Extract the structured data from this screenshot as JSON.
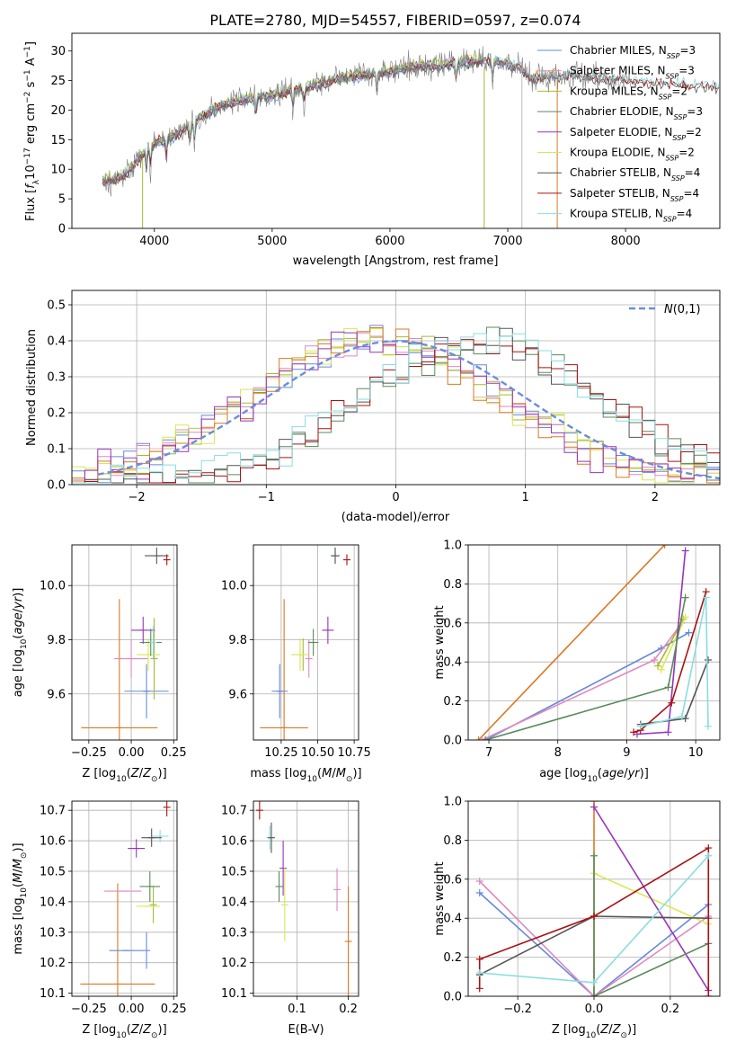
{
  "title": "PLATE=2780, MJD=54557, FIBERID=0597, z=0.074",
  "colors": {
    "chabrier_miles": "#6688dd",
    "salpeter_miles": "#e088c0",
    "kroupa_miles": "#aab830",
    "chabrier_elodie": "#5a8a5a",
    "salpeter_elodie": "#9933bb",
    "kroupa_elodie": "#d8e850",
    "chabrier_stelib": "#555555",
    "salpeter_stelib": "#aa1111",
    "kroupa_stelib": "#88dde0",
    "orange": "#dd7722",
    "data": "#808080",
    "normal": "#6a8ed8"
  },
  "chart_data": [
    {
      "id": "spectrum",
      "type": "line",
      "xlabel": "wavelength [Angstrom, rest frame]",
      "ylabel": "Flux [f_λ 10^-17 erg cm^-2 s^-1 A^-1]",
      "xlim": [
        3300,
        8800
      ],
      "ylim": [
        0,
        33
      ],
      "xticks": [
        "4000",
        "5000",
        "6000",
        "7000",
        "8000"
      ],
      "yticks": [
        "0",
        "5",
        "10",
        "15",
        "20",
        "25",
        "30"
      ],
      "legend_position": "top-right",
      "legend": [
        {
          "name": "Chabrier MILES, N",
          "ssp": "=3"
        },
        {
          "name": "Salpeter MILES, N",
          "ssp": "=3"
        },
        {
          "name": "Kroupa MILES, N",
          "ssp": "=2"
        },
        {
          "name": "Chabrier ELODIE, N",
          "ssp": "=3"
        },
        {
          "name": "Salpeter ELODIE, N",
          "ssp": "=2"
        },
        {
          "name": "Kroupa ELODIE, N",
          "ssp": "=2"
        },
        {
          "name": "Chabrier STELIB, N",
          "ssp": "=4"
        },
        {
          "name": "Salpeter STELIB, N",
          "ssp": "=4"
        },
        {
          "name": "Kroupa STELIB, N",
          "ssp": "=4"
        }
      ],
      "data_range": [
        3560,
        8050
      ],
      "miles_range": [
        3560,
        7420
      ],
      "stelib_range": [
        3560,
        8800
      ],
      "continuum": [
        [
          3560,
          8
        ],
        [
          3700,
          8.5
        ],
        [
          3800,
          10
        ],
        [
          3900,
          12.5
        ],
        [
          4000,
          14.5
        ],
        [
          4200,
          16
        ],
        [
          4400,
          19
        ],
        [
          4600,
          21
        ],
        [
          4800,
          22
        ],
        [
          5000,
          22.5
        ],
        [
          5200,
          23.5
        ],
        [
          5400,
          24.5
        ],
        [
          5600,
          25.5
        ],
        [
          5800,
          26
        ],
        [
          6000,
          26.5
        ],
        [
          6200,
          27.5
        ],
        [
          6400,
          27.5
        ],
        [
          6600,
          28.2
        ],
        [
          6800,
          28.4
        ],
        [
          7000,
          28
        ],
        [
          7100,
          27
        ],
        [
          7200,
          25.5
        ],
        [
          7500,
          25.8
        ],
        [
          7800,
          25.3
        ],
        [
          8000,
          25
        ],
        [
          8300,
          24.5
        ],
        [
          8800,
          24
        ]
      ]
    },
    {
      "id": "residuals",
      "type": "histogram",
      "xlabel": "(data-model)/error",
      "ylabel": "Normed distribution",
      "xlim": [
        -2.5,
        2.5
      ],
      "ylim": [
        0,
        0.54
      ],
      "xticks": [
        "−2",
        "−1",
        "0",
        "1",
        "2"
      ],
      "yticks": [
        "0.0",
        "0.1",
        "0.2",
        "0.3",
        "0.4",
        "0.5"
      ],
      "legend_label": "N(0,1)",
      "legend_position": "top-right",
      "bin_width": 0.1,
      "groups": [
        {
          "center": -0.15,
          "sigma": 0.98,
          "series": [
            "chabrier_miles",
            "salpeter_miles",
            "kroupa_miles",
            "kroupa_elodie",
            "orange",
            "salpeter_elodie"
          ]
        },
        {
          "center": 0.65,
          "sigma": 0.92,
          "series": [
            "chabrier_elodie",
            "chabrier_stelib",
            "salpeter_stelib",
            "kroupa_stelib"
          ]
        }
      ]
    },
    {
      "id": "age-vs-z",
      "type": "errorbar",
      "xlabel": "Z [log10(Z/Z⊙)]",
      "ylabel": "age  [log10(age/yr)]",
      "xlim": [
        -0.35,
        0.27
      ],
      "ylim": [
        9.43,
        10.15
      ],
      "xticks": [
        "−0.25",
        "0.00",
        "0.25"
      ],
      "yticks": [
        "9.6",
        "9.8",
        "10.0"
      ],
      "points": [
        {
          "s": "orange",
          "x": -0.07,
          "y": 9.475,
          "xe": 0.225,
          "ye": 0.475
        },
        {
          "s": "chabrier_miles",
          "x": 0.09,
          "y": 9.61,
          "xe": 0.13,
          "ye": 0.1
        },
        {
          "s": "salpeter_miles",
          "x": 0.0,
          "y": 9.73,
          "xe": 0.1,
          "ye": 0.07
        },
        {
          "s": "kroupa_miles",
          "x": 0.135,
          "y": 9.73,
          "xe": 0.0,
          "ye": 0.15
        },
        {
          "s": "kroupa_elodie",
          "x": 0.1,
          "y": 9.745,
          "xe": 0.07,
          "ye": 0.06
        },
        {
          "s": "salpeter_elodie",
          "x": 0.07,
          "y": 9.835,
          "xe": 0.07,
          "ye": 0.05
        },
        {
          "s": "chabrier_elodie",
          "x": 0.115,
          "y": 9.79,
          "xe": 0.065,
          "ye": 0.05
        },
        {
          "s": "kroupa_stelib",
          "x": 0.13,
          "y": 9.79,
          "xe": 0.0,
          "ye": 0.06
        },
        {
          "s": "chabrier_stelib",
          "x": 0.15,
          "y": 10.11,
          "xe": 0.07,
          "ye": 0.03
        },
        {
          "s": "salpeter_stelib",
          "x": 0.21,
          "y": 10.095,
          "xe": 0.0,
          "ye": 0.02
        }
      ]
    },
    {
      "id": "age-vs-mass",
      "type": "errorbar",
      "xlabel": "mass [log10(M/M⊙)]",
      "ylabel": "",
      "xlim": [
        10.06,
        10.78
      ],
      "ylim": [
        9.43,
        10.15
      ],
      "xticks": [
        "10.25",
        "10.50",
        "10.75"
      ],
      "yticks": [
        "9.6",
        "9.8",
        "10.0"
      ],
      "points": [
        {
          "s": "orange",
          "x": 10.27,
          "y": 9.475,
          "xe": 0.165,
          "ye": 0.475
        },
        {
          "s": "chabrier_miles",
          "x": 10.24,
          "y": 9.61,
          "xe": 0.055,
          "ye": 0.1
        },
        {
          "s": "salpeter_miles",
          "x": 10.44,
          "y": 9.73,
          "xe": 0.0,
          "ye": 0.07
        },
        {
          "s": "kroupa_miles",
          "x": 10.4,
          "y": 9.745,
          "xe": 0.0,
          "ye": 0.06
        },
        {
          "s": "kroupa_elodie",
          "x": 10.38,
          "y": 9.745,
          "xe": 0.06,
          "ye": 0.06
        },
        {
          "s": "salpeter_elodie",
          "x": 10.57,
          "y": 9.835,
          "xe": 0.04,
          "ye": 0.05
        },
        {
          "s": "chabrier_elodie",
          "x": 10.47,
          "y": 9.79,
          "xe": 0.035,
          "ye": 0.05
        },
        {
          "s": "kroupa_stelib",
          "x": 10.62,
          "y": 10.11,
          "xe": 0.02,
          "ye": 0.03
        },
        {
          "s": "chabrier_stelib",
          "x": 10.62,
          "y": 10.11,
          "xe": 0.03,
          "ye": 0.03
        },
        {
          "s": "salpeter_stelib",
          "x": 10.7,
          "y": 10.095,
          "xe": 0.0,
          "ye": 0.02
        }
      ]
    },
    {
      "id": "weight-vs-age",
      "type": "line",
      "xlabel": "age  [log10(age/yr)]",
      "ylabel": "mass weight",
      "xlim": [
        6.7,
        10.35
      ],
      "ylim": [
        0,
        1
      ],
      "xticks": [
        "7",
        "8",
        "9",
        "10"
      ],
      "yticks": [
        "0.0",
        "0.2",
        "0.4",
        "0.6",
        "0.8",
        "1.0"
      ],
      "lines": [
        {
          "s": "orange",
          "pts": [
            [
              6.85,
              0
            ],
            [
              9.55,
              1.0
            ]
          ]
        },
        {
          "s": "chabrier_miles",
          "pts": [
            [
              6.95,
              0
            ],
            [
              9.5,
              0.47
            ],
            [
              9.9,
              0.55
            ]
          ]
        },
        {
          "s": "salpeter_miles",
          "pts": [
            [
              6.9,
              0
            ],
            [
              9.4,
              0.41
            ],
            [
              9.8,
              0.6
            ]
          ]
        },
        {
          "s": "kroupa_miles",
          "pts": [
            [
              9.45,
              0.38
            ],
            [
              9.82,
              0.62
            ]
          ]
        },
        {
          "s": "kroupa_elodie",
          "pts": [
            [
              9.5,
              0.36
            ],
            [
              9.85,
              0.63
            ]
          ]
        },
        {
          "s": "salpeter_elodie",
          "pts": [
            [
              9.15,
              0.03
            ],
            [
              9.6,
              0.04
            ],
            [
              9.85,
              0.97
            ]
          ]
        },
        {
          "s": "chabrier_elodie",
          "pts": [
            [
              6.95,
              0
            ],
            [
              9.6,
              0.27
            ],
            [
              9.85,
              0.73
            ]
          ]
        },
        {
          "s": "chabrier_stelib",
          "pts": [
            [
              9.2,
              0.08
            ],
            [
              9.85,
              0.11
            ],
            [
              10.18,
              0.41
            ]
          ]
        },
        {
          "s": "salpeter_stelib",
          "pts": [
            [
              9.1,
              0.04
            ],
            [
              9.2,
              0.05
            ],
            [
              9.65,
              0.19
            ],
            [
              10.15,
              0.76
            ]
          ]
        },
        {
          "s": "kroupa_stelib",
          "pts": [
            [
              9.2,
              0.07
            ],
            [
              9.8,
              0.12
            ],
            [
              10.15,
              0.73
            ],
            [
              10.18,
              0.07
            ]
          ]
        }
      ]
    },
    {
      "id": "mass-vs-z",
      "type": "errorbar",
      "xlabel": "Z [log10(Z/Z⊙)]",
      "ylabel": "mass [log10(M/M⊙)]",
      "xlim": [
        -0.35,
        0.27
      ],
      "ylim": [
        10.09,
        10.73
      ],
      "xticks": [
        "−0.25",
        "0.00",
        "0.25"
      ],
      "yticks": [
        "10.1",
        "10.2",
        "10.3",
        "10.4",
        "10.5",
        "10.6",
        "10.7"
      ],
      "points": [
        {
          "s": "orange",
          "x": -0.08,
          "y": 10.13,
          "xe": 0.22,
          "ye": 0.33
        },
        {
          "s": "chabrier_miles",
          "x": -0.03,
          "y": 10.24,
          "xe": 0.1,
          "ye": 0.0
        },
        {
          "s": "chabrier_miles",
          "x": 0.09,
          "y": 10.24,
          "xe": 0.0,
          "ye": 0.06
        },
        {
          "s": "salpeter_miles",
          "x": -0.05,
          "y": 10.435,
          "xe": 0.11,
          "ye": 0.0
        },
        {
          "s": "kroupa_miles",
          "x": 0.13,
          "y": 10.39,
          "xe": 0.0,
          "ye": 0.06
        },
        {
          "s": "kroupa_elodie",
          "x": 0.1,
          "y": 10.385,
          "xe": 0.07,
          "ye": 0.0
        },
        {
          "s": "salpeter_elodie",
          "x": 0.03,
          "y": 10.575,
          "xe": 0.05,
          "ye": 0.03
        },
        {
          "s": "chabrier_elodie",
          "x": 0.11,
          "y": 10.45,
          "xe": 0.06,
          "ye": 0.05
        },
        {
          "s": "kroupa_stelib",
          "x": 0.17,
          "y": 10.615,
          "xe": 0.05,
          "ye": 0.02
        },
        {
          "s": "chabrier_stelib",
          "x": 0.12,
          "y": 10.61,
          "xe": 0.06,
          "ye": 0.03
        },
        {
          "s": "salpeter_stelib",
          "x": 0.21,
          "y": 10.71,
          "xe": 0.0,
          "ye": 0.03
        }
      ]
    },
    {
      "id": "mass-vs-ebv",
      "type": "errorbar",
      "xlabel": "E(B-V)",
      "ylabel": "",
      "xlim": [
        0.015,
        0.22
      ],
      "ylim": [
        10.09,
        10.73
      ],
      "xticks": [
        "0.1",
        "0.2"
      ],
      "yticks": [
        "10.1",
        "10.2",
        "10.3",
        "10.4",
        "10.5",
        "10.6",
        "10.7"
      ],
      "points": [
        {
          "s": "salpeter_stelib",
          "x": 0.027,
          "y": 10.7,
          "xe": 0,
          "ye": 0.03
        },
        {
          "s": "kroupa_stelib",
          "x": 0.047,
          "y": 10.61,
          "xe": 0,
          "ye": 0.04
        },
        {
          "s": "chabrier_stelib",
          "x": 0.05,
          "y": 10.61,
          "xe": 0,
          "ye": 0.05
        },
        {
          "s": "chabrier_elodie",
          "x": 0.065,
          "y": 10.45,
          "xe": 0,
          "ye": 0.05
        },
        {
          "s": "salpeter_elodie",
          "x": 0.073,
          "y": 10.51,
          "xe": 0,
          "ye": 0.09
        },
        {
          "s": "kroupa_elodie",
          "x": 0.076,
          "y": 10.39,
          "xe": 0,
          "ye": 0.12
        },
        {
          "s": "salpeter_miles",
          "x": 0.178,
          "y": 10.44,
          "xe": 0,
          "ye": 0.07
        },
        {
          "s": "orange",
          "x": 0.2,
          "y": 10.27,
          "xe": 0,
          "ye": 0.18
        }
      ]
    },
    {
      "id": "weight-vs-z",
      "type": "line",
      "xlabel": "Z [log10(Z/Z⊙)]",
      "ylabel": "mass weight",
      "xlim": [
        -0.33,
        0.33
      ],
      "ylim": [
        0,
        1
      ],
      "xticks": [
        "−0.2",
        "0.0",
        "0.2"
      ],
      "yticks": [
        "0.0",
        "0.2",
        "0.4",
        "0.6",
        "0.8",
        "1.0"
      ],
      "lines": [
        {
          "s": "orange",
          "pts": [
            [
              0,
              0
            ],
            [
              0,
              1.0
            ]
          ]
        },
        {
          "s": "chabrier_miles",
          "pts": [
            [
              -0.3,
              0.53
            ],
            [
              0,
              0.0
            ],
            [
              0.3,
              0.47
            ]
          ]
        },
        {
          "s": "salpeter_miles",
          "pts": [
            [
              -0.3,
              0.59
            ],
            [
              0,
              0.0
            ],
            [
              0.3,
              0.41
            ]
          ]
        },
        {
          "s": "kroupa_elodie",
          "pts": [
            [
              0,
              0.63
            ],
            [
              0.3,
              0.37
            ]
          ]
        },
        {
          "s": "salpeter_elodie",
          "pts": [
            [
              0,
              0.97
            ],
            [
              0.3,
              0.03
            ]
          ]
        },
        {
          "s": "chabrier_elodie",
          "pts": [
            [
              0,
              0.72
            ],
            [
              0,
              0.0
            ],
            [
              0.3,
              0.27
            ]
          ]
        },
        {
          "s": "chabrier_stelib",
          "pts": [
            [
              -0.3,
              0.11
            ],
            [
              0,
              0.41
            ],
            [
              0.3,
              0.4
            ]
          ]
        },
        {
          "s": "salpeter_stelib",
          "pts": [
            [
              -0.3,
              0.04
            ],
            [
              -0.3,
              0.19
            ],
            [
              0,
              0.41
            ],
            [
              0.3,
              0.76
            ],
            [
              0.3,
              0.0
            ]
          ]
        },
        {
          "s": "kroupa_stelib",
          "pts": [
            [
              -0.3,
              0.12
            ],
            [
              0,
              0.07
            ],
            [
              0.3,
              0.72
            ]
          ]
        }
      ]
    }
  ]
}
